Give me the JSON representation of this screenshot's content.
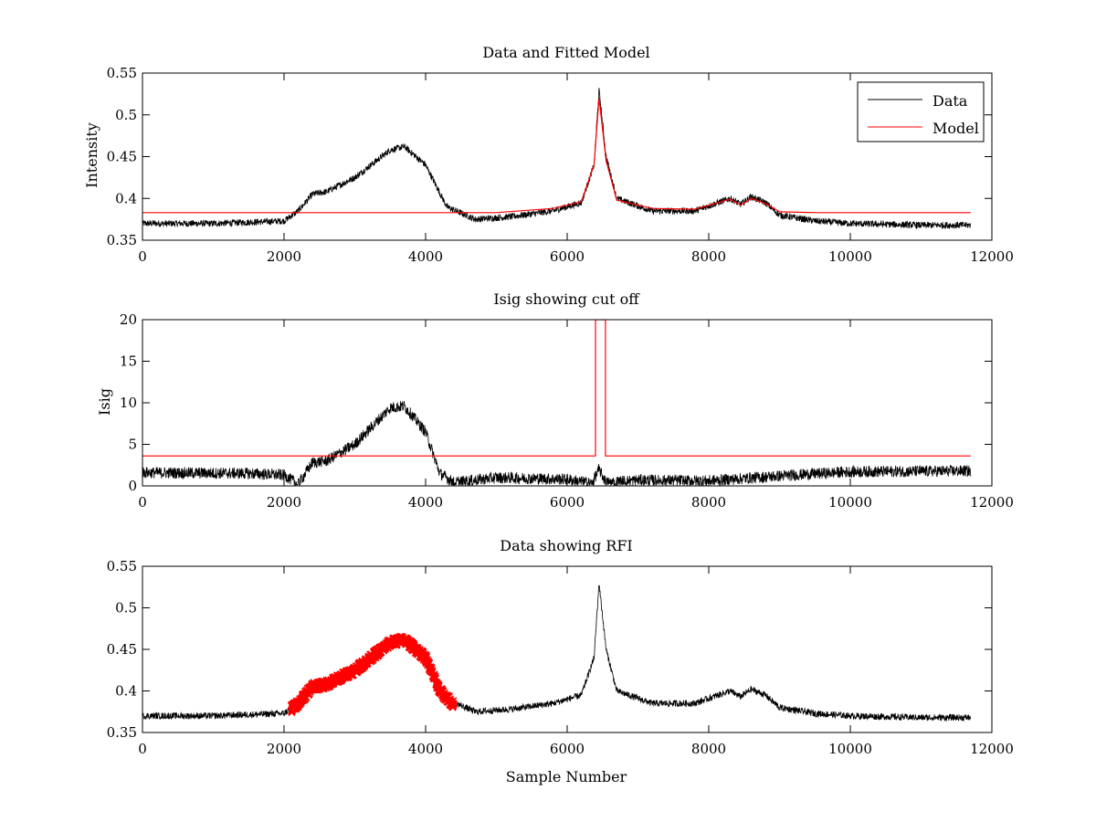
{
  "chart_data": [
    {
      "type": "line",
      "title": "Data and Fitted Model",
      "xlabel": "",
      "ylabel": "Intensity",
      "xlim": [
        0,
        12000
      ],
      "ylim": [
        0.35,
        0.55
      ],
      "xticks": [
        "0",
        "2000",
        "4000",
        "6000",
        "8000",
        "10000",
        "12000"
      ],
      "yticks": [
        "0.35",
        "0.4",
        "0.45",
        "0.5",
        "0.55"
      ],
      "grid": false,
      "legend": "top-right",
      "series": [
        {
          "name": "Data",
          "color": "#000000",
          "x": [
            0,
            1000,
            2000,
            2200,
            2400,
            2600,
            3000,
            3500,
            3700,
            4000,
            4300,
            4700,
            5200,
            5800,
            6200,
            6380,
            6450,
            6550,
            6700,
            7200,
            7800,
            8300,
            8450,
            8600,
            8800,
            9000,
            9500,
            10000,
            11000,
            11700
          ],
          "y": [
            0.37,
            0.37,
            0.373,
            0.385,
            0.405,
            0.408,
            0.425,
            0.458,
            0.462,
            0.44,
            0.39,
            0.375,
            0.378,
            0.385,
            0.395,
            0.44,
            0.53,
            0.45,
            0.4,
            0.385,
            0.385,
            0.4,
            0.393,
            0.402,
            0.395,
            0.38,
            0.373,
            0.37,
            0.368,
            0.368
          ],
          "noise": 0.004
        },
        {
          "name": "Model",
          "color": "#ff0000",
          "x": [
            0,
            2000,
            4000,
            5000,
            5800,
            6200,
            6380,
            6450,
            6550,
            6700,
            7200,
            7800,
            8300,
            8450,
            8600,
            8800,
            9000,
            9500,
            11700
          ],
          "y": [
            0.383,
            0.383,
            0.383,
            0.383,
            0.388,
            0.396,
            0.44,
            0.52,
            0.445,
            0.398,
            0.388,
            0.387,
            0.399,
            0.392,
            0.4,
            0.394,
            0.384,
            0.383,
            0.383
          ]
        }
      ]
    },
    {
      "type": "line",
      "title": "Isig showing cut off",
      "xlabel": "",
      "ylabel": "Isig",
      "xlim": [
        0,
        12000
      ],
      "ylim": [
        0,
        20
      ],
      "xticks": [
        "0",
        "2000",
        "4000",
        "6000",
        "8000",
        "10000",
        "12000"
      ],
      "yticks": [
        "0",
        "5",
        "10",
        "15",
        "20"
      ],
      "grid": false,
      "series": [
        {
          "color": "#000000",
          "x": [
            0,
            1500,
            2000,
            2200,
            2400,
            2600,
            3000,
            3500,
            3700,
            4000,
            4200,
            4400,
            5000,
            6000,
            6350,
            6450,
            6550,
            7000,
            8000,
            9000,
            10000,
            11700
          ],
          "y": [
            1.6,
            1.5,
            1.3,
            0.2,
            2.8,
            3.0,
            5.0,
            9.4,
            9.6,
            6.5,
            1.5,
            0.4,
            1.0,
            0.8,
            0.3,
            2.0,
            0.4,
            0.7,
            0.6,
            1.2,
            1.7,
            1.8
          ],
          "noise": 0.7
        },
        {
          "color": "#ff0000",
          "x": [
            0,
            6400,
            6400,
            6540,
            6540,
            11700
          ],
          "y": [
            3.6,
            3.6,
            20,
            20,
            3.6,
            3.6
          ]
        }
      ]
    },
    {
      "type": "line",
      "title": "Data showing RFI",
      "xlabel": "Sample Number",
      "ylabel": "",
      "xlim": [
        0,
        12000
      ],
      "ylim": [
        0.35,
        0.55
      ],
      "xticks": [
        "0",
        "2000",
        "4000",
        "6000",
        "8000",
        "10000",
        "12000"
      ],
      "yticks": [
        "0.35",
        "0.4",
        "0.45",
        "0.5",
        "0.55"
      ],
      "grid": false,
      "series": [
        {
          "color": "#000000",
          "x": [
            0,
            1000,
            2000,
            2200,
            2400,
            2600,
            3000,
            3500,
            3700,
            4000,
            4300,
            4700,
            5200,
            5800,
            6200,
            6380,
            6450,
            6550,
            6700,
            7200,
            7800,
            8300,
            8450,
            8600,
            8800,
            9000,
            9500,
            10000,
            11000,
            11700
          ],
          "y": [
            0.37,
            0.37,
            0.373,
            0.385,
            0.405,
            0.408,
            0.425,
            0.458,
            0.462,
            0.44,
            0.39,
            0.375,
            0.378,
            0.385,
            0.395,
            0.44,
            0.53,
            0.45,
            0.4,
            0.385,
            0.385,
            0.4,
            0.393,
            0.402,
            0.395,
            0.38,
            0.373,
            0.37,
            0.368,
            0.368
          ],
          "noise": 0.004
        },
        {
          "color": "#ff0000",
          "marker": "x",
          "x_range": [
            2100,
            4400
          ],
          "x": [
            2100,
            2200,
            2400,
            2600,
            3000,
            3500,
            3700,
            4000,
            4200,
            4400
          ],
          "y": [
            0.378,
            0.385,
            0.405,
            0.408,
            0.425,
            0.458,
            0.462,
            0.44,
            0.4,
            0.383
          ],
          "noise": 0.005
        }
      ]
    }
  ]
}
